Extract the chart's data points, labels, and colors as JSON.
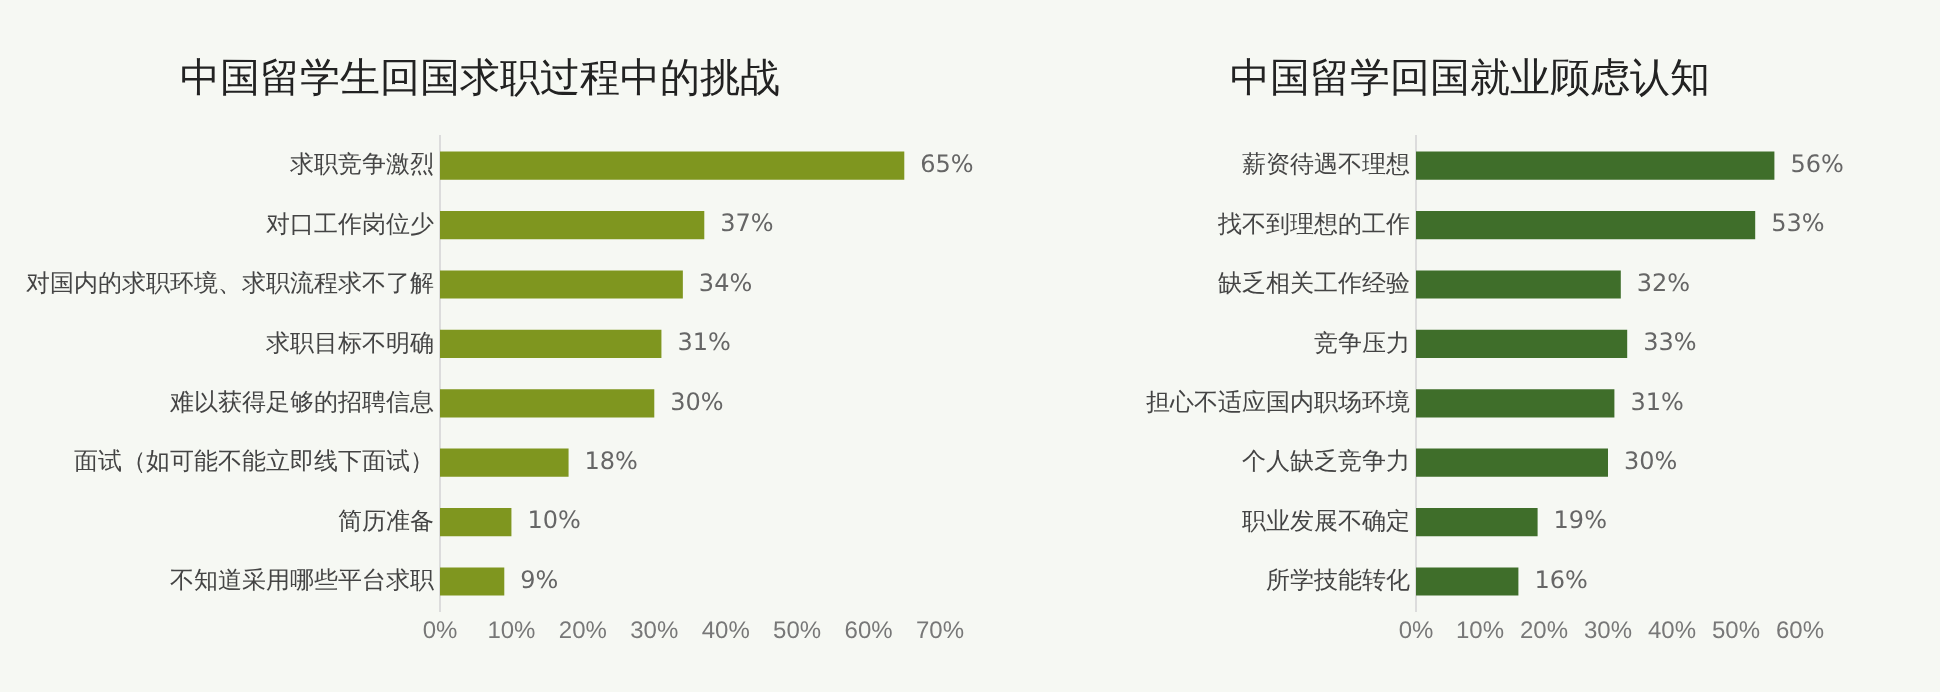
{
  "chart_data": [
    {
      "type": "bar",
      "orientation": "horizontal",
      "title": "中国留学生回国求职过程中的挑战",
      "categories": [
        "求职竞争激烈",
        "对口工作岗位少",
        "对国内的求职环境、求职流程求不了解",
        "求职目标不明确",
        "难以获得足够的招聘信息",
        "面试（如可能不能立即线下面试）",
        "简历准备",
        "不知道采用哪些平台求职"
      ],
      "values": [
        65,
        37,
        34,
        31,
        30,
        18,
        10,
        9
      ],
      "value_labels": [
        "65%",
        "37%",
        "34%",
        "31%",
        "30%",
        "18%",
        "10%",
        "9%"
      ],
      "color": "#7f961f",
      "xlim": [
        0,
        70
      ],
      "xticks": [
        {
          "value": 0,
          "label": "0%"
        },
        {
          "value": 10,
          "label": "10%"
        },
        {
          "value": 20,
          "label": "20%"
        },
        {
          "value": 30,
          "label": "30%"
        },
        {
          "value": 40,
          "label": "40%"
        },
        {
          "value": 50,
          "label": "50%"
        },
        {
          "value": 60,
          "label": "60%"
        },
        {
          "value": 70,
          "label": "70%"
        }
      ],
      "grid": false,
      "legend": false
    },
    {
      "type": "bar",
      "orientation": "horizontal",
      "title": "中国留学回国就业顾虑认知",
      "categories": [
        "薪资待遇不理想",
        "找不到理想的工作",
        "缺乏相关工作经验",
        "竞争压力",
        "担心不适应国内职场环境",
        "个人缺乏竞争力",
        "职业发展不确定",
        "所学技能转化"
      ],
      "values": [
        56,
        53,
        32,
        33,
        31,
        30,
        19,
        16
      ],
      "value_labels": [
        "56%",
        "53%",
        "32%",
        "33%",
        "31%",
        "30%",
        "19%",
        "16%"
      ],
      "color": "#3f6e2a",
      "xlim": [
        0,
        60
      ],
      "xticks": [
        {
          "value": 0,
          "label": "0%"
        },
        {
          "value": 10,
          "label": "10%"
        },
        {
          "value": 20,
          "label": "20%"
        },
        {
          "value": 30,
          "label": "30%"
        },
        {
          "value": 40,
          "label": "40%"
        },
        {
          "value": 50,
          "label": "50%"
        },
        {
          "value": 60,
          "label": "60%"
        }
      ],
      "grid": false,
      "legend": false
    }
  ]
}
